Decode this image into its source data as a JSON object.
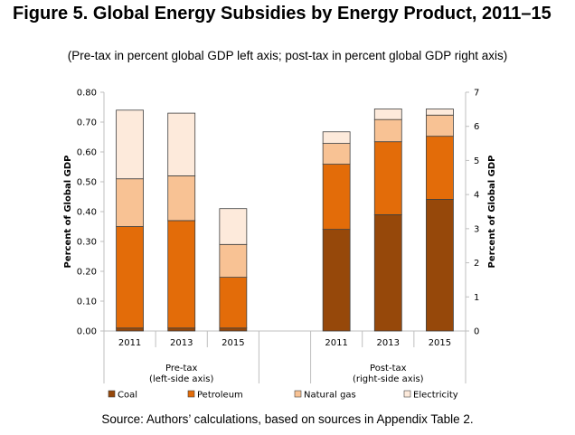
{
  "title": "Figure 5. Global Energy Subsidies by Energy Product, 2011–15",
  "subtitle": "(Pre-tax in percent global GDP left axis; post-tax in percent global GDP right axis)",
  "source": "Source: Authors’ calculations, based on sources in Appendix Table 2.",
  "chart_data": {
    "type": "bar",
    "stacked": true,
    "ylabel_left": "Percent of Global GDP",
    "ylabel_right": "Percent of Global GDP",
    "ylim_left": [
      0,
      0.8
    ],
    "ylim_right": [
      0,
      7
    ],
    "yticks_left": [
      "0.00",
      "0.10",
      "0.20",
      "0.30",
      "0.40",
      "0.50",
      "0.60",
      "0.70",
      "0.80"
    ],
    "yticks_right": [
      "0",
      "1",
      "2",
      "3",
      "4",
      "5",
      "6",
      "7"
    ],
    "legend_position": "bottom",
    "series_names": [
      "Coal",
      "Petroleum",
      "Natural gas",
      "Electricity"
    ],
    "colors": [
      "#96480a",
      "#e36c09",
      "#f8c294",
      "#fdeadb"
    ],
    "groups": [
      {
        "label": "Pre-tax",
        "sublabel": "(left-side axis)",
        "axis": "left",
        "categories": [
          "2011",
          "2013",
          "2015"
        ],
        "values": {
          "Coal": [
            0.01,
            0.01,
            0.01
          ],
          "Petroleum": [
            0.34,
            0.36,
            0.17
          ],
          "Natural gas": [
            0.16,
            0.15,
            0.11
          ],
          "Electricity": [
            0.23,
            0.21,
            0.12
          ]
        }
      },
      {
        "label": "Post-tax",
        "sublabel": "(right-side axis)",
        "axis": "right",
        "categories": [
          "2011",
          "2013",
          "2015"
        ],
        "values": {
          "Coal": [
            2.98,
            3.41,
            3.86
          ],
          "Petroleum": [
            1.91,
            2.14,
            1.85
          ],
          "Natural gas": [
            0.61,
            0.65,
            0.62
          ],
          "Electricity": [
            0.34,
            0.31,
            0.18
          ]
        }
      }
    ]
  }
}
